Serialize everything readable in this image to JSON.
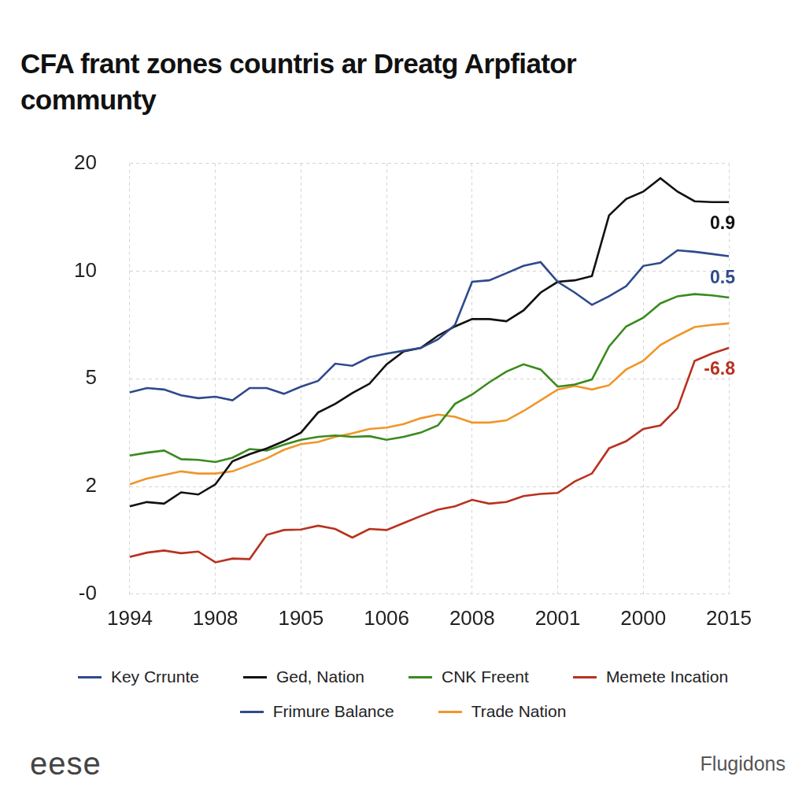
{
  "chart_data": {
    "type": "line",
    "title": [
      "CFA frant zones countris ar Dreatg Arpfiator",
      "communty"
    ],
    "categories": [
      "1994",
      null,
      null,
      null,
      null,
      "1908",
      null,
      null,
      null,
      null,
      "1905",
      null,
      null,
      null,
      null,
      "1006",
      null,
      null,
      null,
      null,
      "2008",
      null,
      null,
      null,
      null,
      "2001",
      null,
      null,
      null,
      null,
      "2000",
      null,
      null,
      null,
      null,
      "2015"
    ],
    "series": [
      {
        "name": "Key Crrunte",
        "color": "#2e4a8c",
        "values": [
          4.62,
          4.74,
          4.7,
          4.54,
          4.46,
          4.5,
          4.4,
          4.74,
          4.74,
          4.58,
          4.78,
          4.94,
          5.7,
          5.6,
          6.0,
          6.17,
          6.3,
          6.43,
          6.83,
          7.5,
          9.5,
          9.57,
          9.9,
          10.48,
          10.83,
          9.5,
          9.0,
          8.43,
          8.83,
          9.3,
          10.48,
          10.76,
          11.93,
          11.79,
          11.59,
          11.38
        ]
      },
      {
        "name": "Ged, Nation",
        "color": "#111111",
        "values": [
          1.63,
          1.71,
          1.68,
          1.89,
          1.85,
          2.06,
          2.7,
          2.9,
          3.06,
          3.26,
          3.5,
          4.06,
          4.3,
          4.6,
          4.86,
          5.67,
          6.27,
          6.43,
          7.0,
          7.43,
          7.77,
          7.77,
          7.67,
          8.17,
          9.0,
          9.5,
          9.57,
          9.77,
          15.17,
          16.69,
          17.38,
          18.62,
          17.38,
          16.48,
          16.41,
          16.41
        ]
      },
      {
        "name": "CNK Freent",
        "color": "#3a8a1e",
        "values": [
          2.86,
          2.94,
          3.0,
          2.76,
          2.74,
          2.68,
          2.8,
          3.04,
          3.0,
          3.16,
          3.3,
          3.38,
          3.42,
          3.38,
          3.4,
          3.3,
          3.38,
          3.5,
          3.7,
          4.3,
          4.56,
          4.9,
          5.33,
          5.67,
          5.43,
          4.78,
          4.84,
          4.98,
          6.5,
          7.43,
          7.83,
          8.5,
          8.83,
          8.93,
          8.87,
          8.77
        ]
      },
      {
        "name": "Memete Incation",
        "color": "#b8321f",
        "values": [
          0.69,
          0.77,
          0.81,
          0.76,
          0.79,
          0.59,
          0.66,
          0.65,
          1.1,
          1.19,
          1.2,
          1.27,
          1.21,
          1.05,
          1.21,
          1.19,
          1.32,
          1.45,
          1.57,
          1.63,
          1.75,
          1.68,
          1.71,
          1.82,
          1.86,
          1.88,
          2.14,
          2.36,
          3.06,
          3.26,
          3.6,
          3.7,
          4.18,
          5.83,
          6.17,
          6.43
        ]
      },
      {
        "name": "Frimure Balance",
        "color": "#2e4a8c",
        "values": [
          null,
          null,
          null,
          null,
          null,
          null,
          null,
          null,
          null,
          null,
          null,
          null,
          null,
          null,
          null,
          null,
          null,
          null,
          null,
          null,
          null,
          null,
          null,
          null,
          null,
          null,
          null,
          null,
          null,
          null,
          null,
          null,
          null,
          null,
          null,
          null
        ]
      },
      {
        "name": "Trade Nation",
        "color": "#f0962a",
        "values": [
          2.06,
          2.22,
          2.32,
          2.42,
          2.36,
          2.36,
          2.42,
          2.6,
          2.78,
          3.02,
          3.18,
          3.24,
          3.38,
          3.48,
          3.6,
          3.64,
          3.74,
          3.9,
          4.0,
          3.94,
          3.78,
          3.78,
          3.84,
          4.1,
          4.4,
          4.7,
          4.8,
          4.7,
          4.82,
          5.43,
          5.83,
          6.57,
          7.0,
          7.4,
          7.5,
          7.57
        ]
      }
    ],
    "ylim": [
      0,
      20
    ],
    "yticks": [
      {
        "value": 0,
        "label": "-0"
      },
      2,
      5,
      10,
      20
    ],
    "grid": true,
    "legend": "bottom",
    "annotations": [
      {
        "text": "0.9",
        "series": "Ged, Nation"
      },
      {
        "text": "0.5",
        "series": "Key Crrunte"
      },
      {
        "text": "-6.8",
        "series": "Memete Incation"
      }
    ],
    "logo": "eese",
    "source": "Flugidons"
  }
}
